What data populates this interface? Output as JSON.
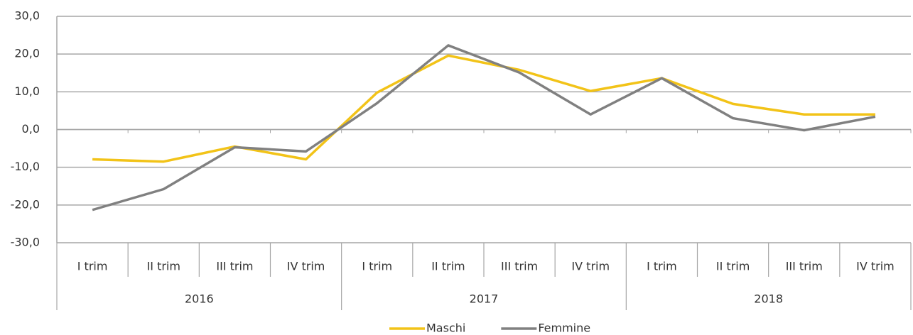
{
  "chart_data": {
    "type": "line",
    "categories": [
      "I trim",
      "II trim",
      "III trim",
      "IV trim",
      "I trim",
      "II trim",
      "III trim",
      "IV trim",
      "I trim",
      "II trim",
      "III trim",
      "IV trim"
    ],
    "category_groups": [
      "2016",
      "2017",
      "2018"
    ],
    "series": [
      {
        "name": "Maschi",
        "color": "#f2c318",
        "values": [
          -7.9,
          -8.5,
          -4.5,
          -7.9,
          9.8,
          19.6,
          15.8,
          10.2,
          13.6,
          6.8,
          4.0,
          4.0
        ]
      },
      {
        "name": "Femmine",
        "color": "#808080",
        "values": [
          -21.3,
          -15.8,
          -4.7,
          -5.8,
          7.0,
          22.3,
          15.1,
          4.0,
          13.6,
          3.0,
          -0.2,
          3.4
        ]
      }
    ],
    "ylim": [
      -30,
      30
    ],
    "yticks": [
      {
        "value": -30,
        "label": "-30,0"
      },
      {
        "value": -20,
        "label": "-20,0"
      },
      {
        "value": -10,
        "label": "-10,0"
      },
      {
        "value": 0,
        "label": "0,0"
      },
      {
        "value": 10,
        "label": "10,0"
      },
      {
        "value": 20,
        "label": "20,0"
      },
      {
        "value": 30,
        "label": "30,0"
      }
    ],
    "grid": true,
    "legend": "bottom"
  }
}
